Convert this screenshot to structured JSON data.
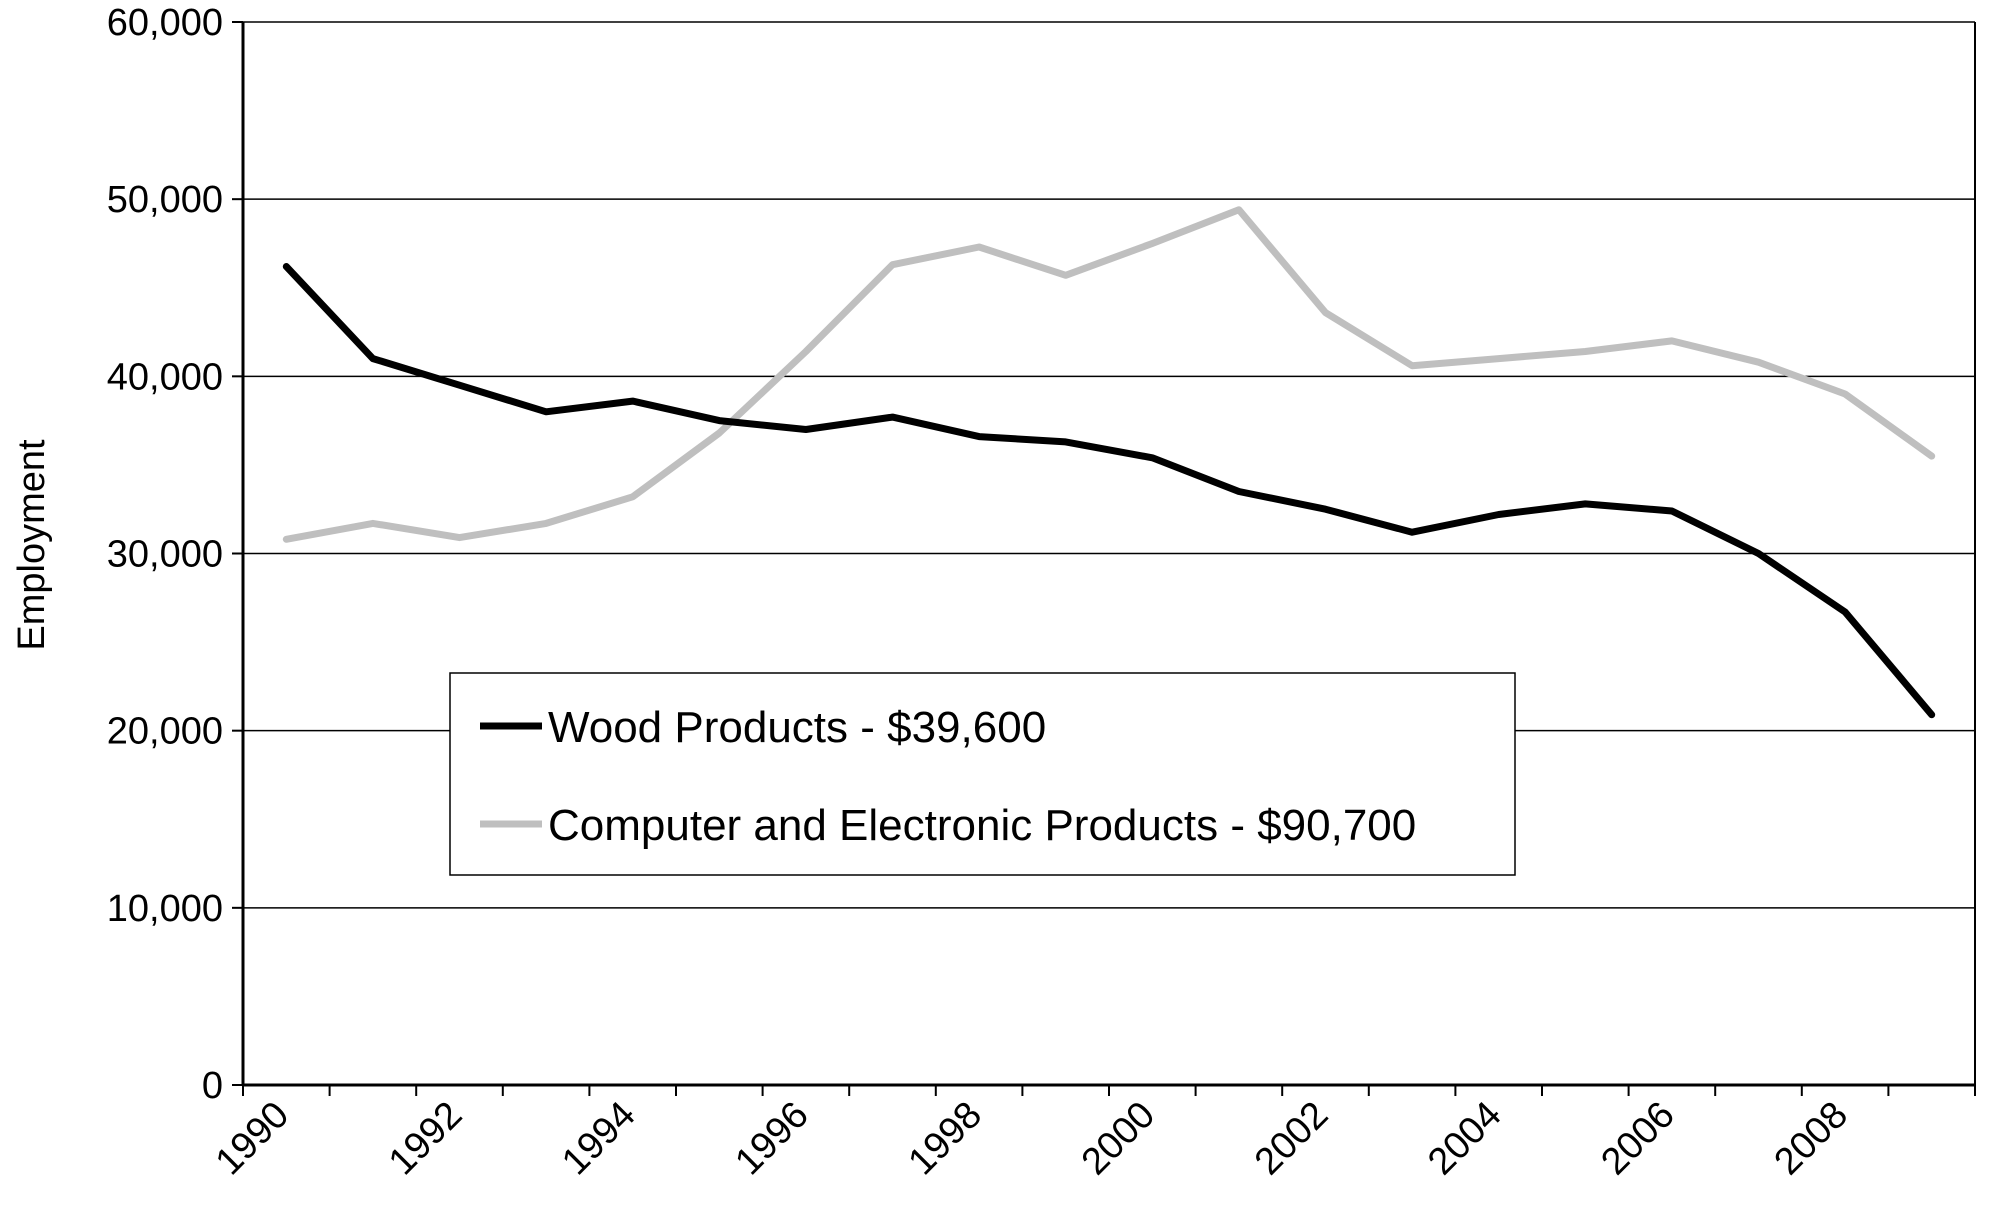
{
  "chart_data": {
    "type": "line",
    "title": "",
    "xlabel": "",
    "ylabel": "Employment",
    "ylim": [
      0,
      60000
    ],
    "yticks": [
      0,
      10000,
      20000,
      30000,
      40000,
      50000,
      60000
    ],
    "ytick_labels": [
      "0",
      "10,000",
      "20,000",
      "30,000",
      "40,000",
      "50,000",
      "60,000"
    ],
    "x": [
      1990,
      1991,
      1992,
      1993,
      1994,
      1995,
      1996,
      1997,
      1998,
      1999,
      2000,
      2001,
      2002,
      2003,
      2004,
      2005,
      2006,
      2007,
      2008,
      2009
    ],
    "xtick_labels": [
      "1990",
      "1992",
      "1994",
      "1996",
      "1998",
      "2000",
      "2002",
      "2004",
      "2006",
      "2008"
    ],
    "grid": true,
    "legend_position": "center-left",
    "series": [
      {
        "name": "Wood Products - $39,600",
        "color": "#000000",
        "values": [
          46200,
          41000,
          39500,
          38000,
          38600,
          37500,
          37000,
          37700,
          36600,
          36300,
          35400,
          33500,
          32500,
          31200,
          32200,
          32800,
          32400,
          30000,
          26700,
          20900
        ]
      },
      {
        "name": "Computer and Electronic Products - $90,700",
        "color": "#bfbfbf",
        "values": [
          30800,
          31700,
          30900,
          31700,
          33200,
          36800,
          41400,
          46300,
          47300,
          45700,
          47500,
          49400,
          43600,
          40600,
          41000,
          41400,
          42000,
          40800,
          39000,
          35500
        ]
      }
    ]
  }
}
